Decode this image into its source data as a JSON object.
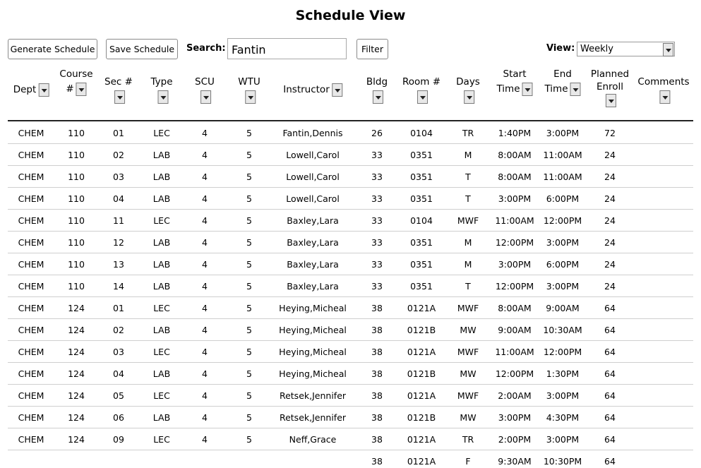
{
  "title": "Schedule View",
  "toolbar": {
    "generate_label": "Generate Schedule",
    "save_label": "Save Schedule",
    "search_label": "Search:",
    "search_value": "Fantin",
    "filter_label": "Filter",
    "view_label": "View:",
    "view_value": "Weekly"
  },
  "headers": [
    {
      "l1": "Dept",
      "l2": ""
    },
    {
      "l1": "Course",
      "l2": "#"
    },
    {
      "l1": "Sec #",
      "l2": ""
    },
    {
      "l1": "Type",
      "l2": ""
    },
    {
      "l1": "SCU",
      "l2": ""
    },
    {
      "l1": "WTU",
      "l2": ""
    },
    {
      "l1": "Instructor",
      "l2": ""
    },
    {
      "l1": "Bldg",
      "l2": ""
    },
    {
      "l1": "Room #",
      "l2": ""
    },
    {
      "l1": "Days",
      "l2": ""
    },
    {
      "l1": "Start",
      "l2": "Time"
    },
    {
      "l1": "End",
      "l2": "Time"
    },
    {
      "l1": "Planned",
      "l2": "Enroll"
    },
    {
      "l1": "Comments",
      "l2": ""
    }
  ],
  "rows": [
    [
      "CHEM",
      "110",
      "01",
      "LEC",
      "4",
      "5",
      "Fantin,Dennis",
      "26",
      "0104",
      "TR",
      "1:40PM",
      "3:00PM",
      "72",
      ""
    ],
    [
      "CHEM",
      "110",
      "02",
      "LAB",
      "4",
      "5",
      "Lowell,Carol",
      "33",
      "0351",
      "M",
      "8:00AM",
      "11:00AM",
      "24",
      ""
    ],
    [
      "CHEM",
      "110",
      "03",
      "LAB",
      "4",
      "5",
      "Lowell,Carol",
      "33",
      "0351",
      "T",
      "8:00AM",
      "11:00AM",
      "24",
      ""
    ],
    [
      "CHEM",
      "110",
      "04",
      "LAB",
      "4",
      "5",
      "Lowell,Carol",
      "33",
      "0351",
      "T",
      "3:00PM",
      "6:00PM",
      "24",
      ""
    ],
    [
      "CHEM",
      "110",
      "11",
      "LEC",
      "4",
      "5",
      "Baxley,Lara",
      "33",
      "0104",
      "MWF",
      "11:00AM",
      "12:00PM",
      "24",
      ""
    ],
    [
      "CHEM",
      "110",
      "12",
      "LAB",
      "4",
      "5",
      "Baxley,Lara",
      "33",
      "0351",
      "M",
      "12:00PM",
      "3:00PM",
      "24",
      ""
    ],
    [
      "CHEM",
      "110",
      "13",
      "LAB",
      "4",
      "5",
      "Baxley,Lara",
      "33",
      "0351",
      "M",
      "3:00PM",
      "6:00PM",
      "24",
      ""
    ],
    [
      "CHEM",
      "110",
      "14",
      "LAB",
      "4",
      "5",
      "Baxley,Lara",
      "33",
      "0351",
      "T",
      "12:00PM",
      "3:00PM",
      "24",
      ""
    ],
    [
      "CHEM",
      "124",
      "01",
      "LEC",
      "4",
      "5",
      "Heying,Micheal",
      "38",
      "0121A",
      "MWF",
      "8:00AM",
      "9:00AM",
      "64",
      ""
    ],
    [
      "CHEM",
      "124",
      "02",
      "LAB",
      "4",
      "5",
      "Heying,Micheal",
      "38",
      "0121B",
      "MW",
      "9:00AM",
      "10:30AM",
      "64",
      ""
    ],
    [
      "CHEM",
      "124",
      "03",
      "LEC",
      "4",
      "5",
      "Heying,Micheal",
      "38",
      "0121A",
      "MWF",
      "11:00AM",
      "12:00PM",
      "64",
      ""
    ],
    [
      "CHEM",
      "124",
      "04",
      "LAB",
      "4",
      "5",
      "Heying,Micheal",
      "38",
      "0121B",
      "MW",
      "12:00PM",
      "1:30PM",
      "64",
      ""
    ],
    [
      "CHEM",
      "124",
      "05",
      "LEC",
      "4",
      "5",
      "Retsek,Jennifer",
      "38",
      "0121A",
      "MWF",
      "2:00AM",
      "3:00PM",
      "64",
      ""
    ],
    [
      "CHEM",
      "124",
      "06",
      "LAB",
      "4",
      "5",
      "Retsek,Jennifer",
      "38",
      "0121B",
      "MW",
      "3:00PM",
      "4:30PM",
      "64",
      ""
    ],
    [
      "CHEM",
      "124",
      "09",
      "LEC",
      "4",
      "5",
      "Neff,Grace",
      "38",
      "0121A",
      "TR",
      "2:00PM",
      "3:00PM",
      "64",
      ""
    ],
    [
      "",
      "",
      "",
      "",
      "",
      "",
      "",
      "38",
      "0121A",
      "F",
      "9:30AM",
      "10:30PM",
      "64",
      ""
    ]
  ]
}
